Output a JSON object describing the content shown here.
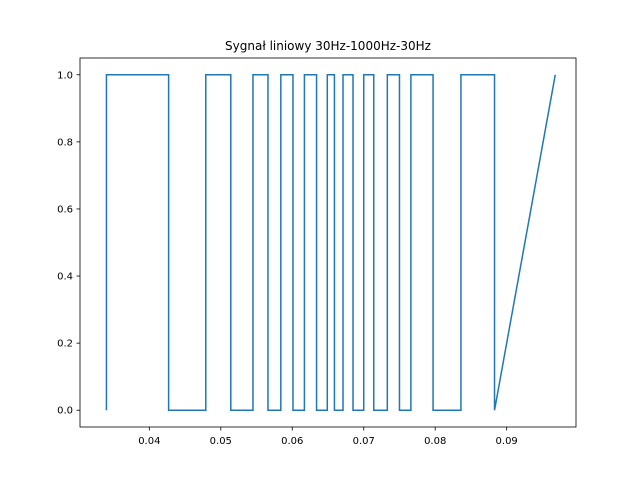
{
  "chart_data": {
    "type": "line",
    "title": "Sygnał liniowy 30Hz-1000Hz-30Hz",
    "xlabel": "",
    "ylabel": "",
    "xlim": [
      0.0303,
      0.0997
    ],
    "ylim": [
      -0.05,
      1.05
    ],
    "x_ticks": [
      0.04,
      0.05,
      0.06,
      0.07,
      0.08,
      0.09
    ],
    "x_tick_labels": [
      "0.04",
      "0.05",
      "0.06",
      "0.07",
      "0.08",
      "0.09"
    ],
    "y_ticks": [
      0.0,
      0.2,
      0.4,
      0.6,
      0.8,
      1.0
    ],
    "y_tick_labels": [
      "0.0",
      "0.2",
      "0.4",
      "0.6",
      "0.8",
      "1.0"
    ],
    "grid": false,
    "legend": "none",
    "series": [
      {
        "color": "#1f77b4",
        "step": true,
        "x": [
          0.034,
          0.034,
          0.0427,
          0.0427,
          0.0479,
          0.0479,
          0.0514,
          0.0514,
          0.0545,
          0.0545,
          0.0566,
          0.0566,
          0.0584,
          0.0584,
          0.0601,
          0.0601,
          0.0617,
          0.0617,
          0.0634,
          0.0634,
          0.0649,
          0.0649,
          0.0659,
          0.0659,
          0.0671,
          0.0671,
          0.0685,
          0.0685,
          0.07,
          0.07,
          0.0714,
          0.0714,
          0.0733,
          0.0733,
          0.075,
          0.075,
          0.0766,
          0.0766,
          0.0797,
          0.0797,
          0.0836,
          0.0836,
          0.0883,
          0.0883,
          0.0968
        ],
        "y": [
          0,
          1,
          1,
          0,
          0,
          1,
          1,
          0,
          0,
          1,
          1,
          0,
          0,
          1,
          1,
          0,
          0,
          1,
          1,
          0,
          0,
          1,
          1,
          0,
          0,
          1,
          1,
          0,
          0,
          1,
          1,
          0,
          0,
          1,
          1,
          0,
          0,
          1,
          1,
          0,
          0,
          1,
          1,
          0,
          1
        ]
      }
    ]
  }
}
